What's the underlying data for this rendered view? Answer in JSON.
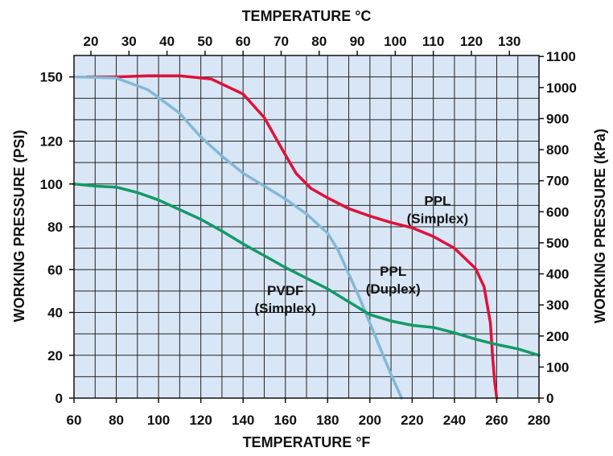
{
  "chart_data": {
    "type": "line",
    "title": "",
    "xlabel": "TEMPERATURE °F",
    "ylabel": "WORKING PRESSURE (PSI)",
    "x2label": "TEMPERATURE °C",
    "y2label": "WORKING PRESSURE (kPa)",
    "xlim": [
      60,
      280
    ],
    "ylim": [
      0,
      160
    ],
    "x_ticks": [
      60,
      80,
      100,
      120,
      140,
      160,
      180,
      200,
      220,
      240,
      260,
      280
    ],
    "y_ticks": [
      0,
      20,
      40,
      60,
      80,
      100,
      120,
      150
    ],
    "x2_ticks": [
      20,
      30,
      40,
      50,
      60,
      70,
      80,
      90,
      100,
      110,
      120,
      130
    ],
    "y2_ticks": [
      0,
      100,
      200,
      300,
      400,
      500,
      600,
      700,
      800,
      900,
      1000,
      1100
    ],
    "grid": true,
    "colors": {
      "background": "#d9e6f5",
      "grid": "#1f1f1f"
    },
    "series": [
      {
        "name": "PPL (Simplex)",
        "color": "#e0103a",
        "x": [
          66,
          80,
          95,
          110,
          125,
          140,
          150,
          158,
          165,
          172,
          180,
          190,
          200,
          210,
          220,
          230,
          240,
          250,
          254,
          257,
          258,
          259,
          260
        ],
        "y": [
          150,
          150,
          150.5,
          150.5,
          149,
          142,
          131,
          117,
          105,
          98,
          93.5,
          88.5,
          85,
          82,
          79.5,
          75.5,
          70,
          60.5,
          52,
          35,
          20,
          8,
          0
        ]
      },
      {
        "name": "PPL (Duplex)",
        "color": "#82b8d8",
        "x": [
          61,
          80,
          95,
          110,
          120,
          130,
          140,
          150,
          160,
          170,
          180,
          185,
          190,
          195,
          200,
          205,
          210,
          215
        ],
        "y": [
          150,
          149.5,
          144,
          133,
          122,
          113,
          105,
          99,
          93,
          86,
          77,
          69,
          58,
          47,
          35,
          23,
          11,
          0
        ]
      },
      {
        "name": "PVDF (Simplex)",
        "color": "#129a66",
        "x": [
          60,
          70,
          80,
          90,
          100,
          110,
          120,
          130,
          140,
          150,
          160,
          170,
          180,
          190,
          200,
          210,
          220,
          230,
          240,
          250,
          260,
          270,
          280
        ],
        "y": [
          100,
          99,
          98.5,
          96,
          92.5,
          88,
          83.5,
          78,
          72,
          66.5,
          61,
          56,
          51,
          45,
          39,
          36,
          34,
          33,
          30.5,
          27.5,
          25,
          23,
          20
        ]
      }
    ],
    "labels": [
      {
        "lines": [
          "PPL",
          "(Simplex)"
        ],
        "x": 232,
        "y": 90
      },
      {
        "lines": [
          "PPL",
          "(Duplex)"
        ],
        "x": 211,
        "y": 57
      },
      {
        "lines": [
          "PVDF",
          "(Simplex)"
        ],
        "x": 160,
        "y": 48
      }
    ]
  }
}
